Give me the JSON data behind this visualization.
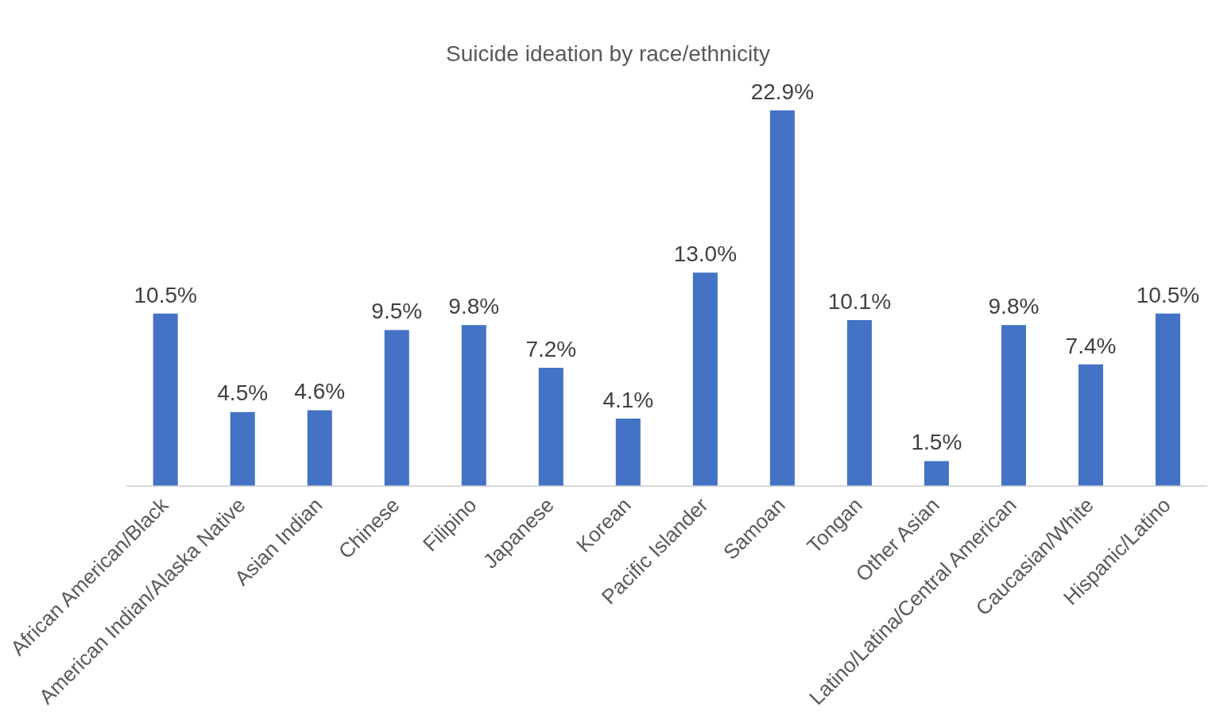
{
  "chart_data": {
    "type": "bar",
    "title": "Suicide ideation by race/ethnicity",
    "categories": [
      "African American/Black",
      "American Indian/Alaska Native",
      "Asian Indian",
      "Chinese",
      "Filipino",
      "Japanese",
      "Korean",
      "Pacific Islander",
      "Samoan",
      "Tongan",
      "Other Asian",
      "Latino/Latina/Central American",
      "Caucasian/White",
      "Hispanic/Latino"
    ],
    "values": [
      10.5,
      4.5,
      4.6,
      9.5,
      9.8,
      7.2,
      4.1,
      13.0,
      22.9,
      10.1,
      1.5,
      9.8,
      7.4,
      10.5
    ],
    "value_labels": [
      "10.5%",
      "4.5%",
      "4.6%",
      "9.5%",
      "9.8%",
      "7.2%",
      "4.1%",
      "13.0%",
      "22.9%",
      "10.1%",
      "1.5%",
      "9.8%",
      "7.4%",
      "10.5%"
    ],
    "color": "#4472c4",
    "grid": false,
    "legend": false
  }
}
